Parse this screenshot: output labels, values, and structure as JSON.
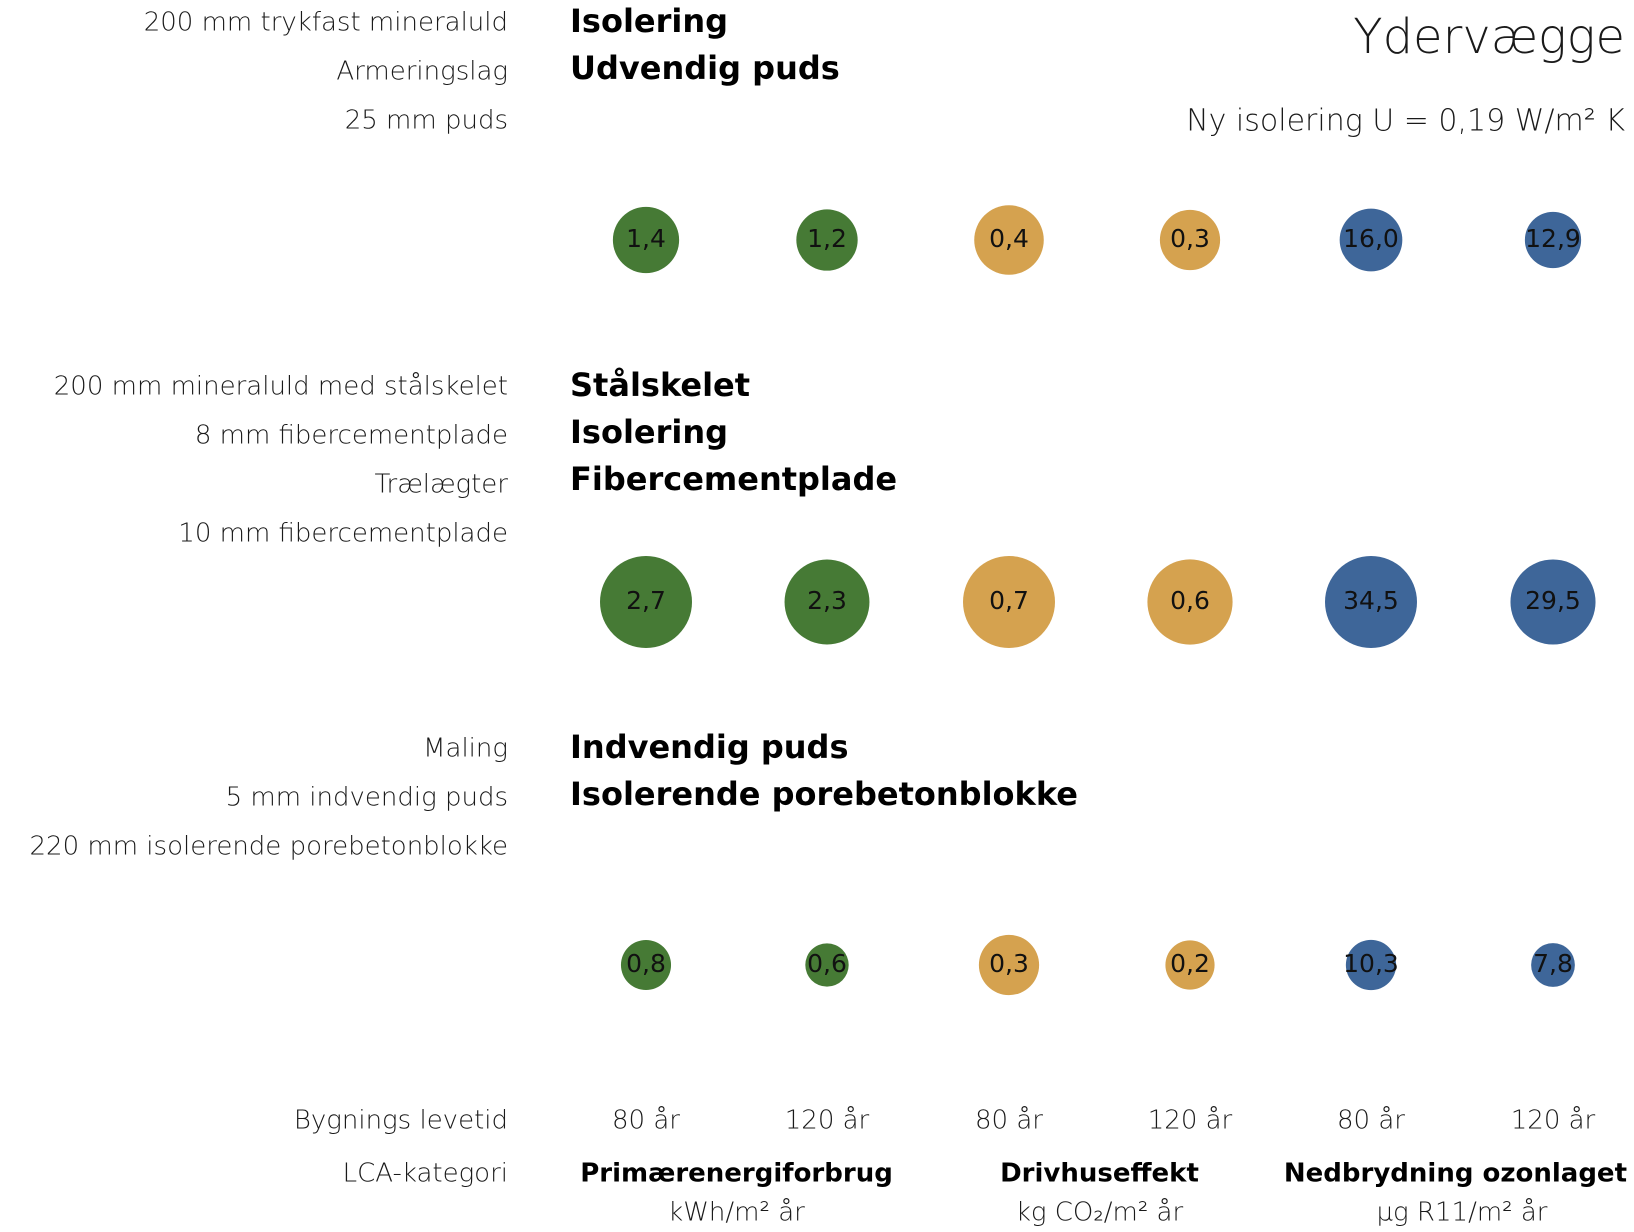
{
  "chart_data": {
    "type": "bubble",
    "title": "Ydervægge",
    "subtitle": "Ny isolering U = 0,19 W/m² K",
    "lifetime_label": "Bygnings levetid",
    "category_label": "LCA-kategori",
    "lifetimes": [
      "80 år",
      "120 år",
      "80 år",
      "120 år",
      "80 år",
      "120 år"
    ],
    "categories": [
      {
        "name": "Primærenergiforbrug",
        "unit": "kWh/m² år",
        "color": "#467a35"
      },
      {
        "name": "Drivhuseffekt",
        "unit": "kg CO₂/m² år",
        "color": "#d5a24f"
      },
      {
        "name": "Nedbrydning ozonlaget",
        "unit": "µg R11/m² år",
        "color": "#3e6699"
      }
    ],
    "rows": [
      {
        "layers": [
          "200 mm trykfast mineraluld",
          "Armeringslag",
          "25 mm puds"
        ],
        "labels": [
          "Isolering",
          "Udvendig puds"
        ],
        "values": [
          1.4,
          1.2,
          0.4,
          0.3,
          16.0,
          12.9
        ],
        "value_labels": [
          "1,4",
          "1,2",
          "0,4",
          "0,3",
          "16,0",
          "12,9"
        ]
      },
      {
        "layers": [
          "200 mm mineraluld med stålskelet",
          "8 mm fibercementplade",
          "Trælægter",
          "10 mm fibercementplade"
        ],
        "labels": [
          "Stålskelet",
          "Isolering",
          "Fibercementplade"
        ],
        "values": [
          2.7,
          2.3,
          0.7,
          0.6,
          34.5,
          29.5
        ],
        "value_labels": [
          "2,7",
          "2,3",
          "0,7",
          "0,6",
          "34,5",
          "29,5"
        ]
      },
      {
        "layers": [
          "Maling",
          "5 mm indvendig puds",
          "220 mm isolerende porebetonblokke"
        ],
        "labels": [
          "Indvendig puds",
          "Isolerende porebetonblokke"
        ],
        "values": [
          0.8,
          0.6,
          0.3,
          0.2,
          10.3,
          7.8
        ],
        "value_labels": [
          "0,8",
          "0,6",
          "0,3",
          "0,2",
          "10,3",
          "7,8"
        ]
      }
    ]
  }
}
